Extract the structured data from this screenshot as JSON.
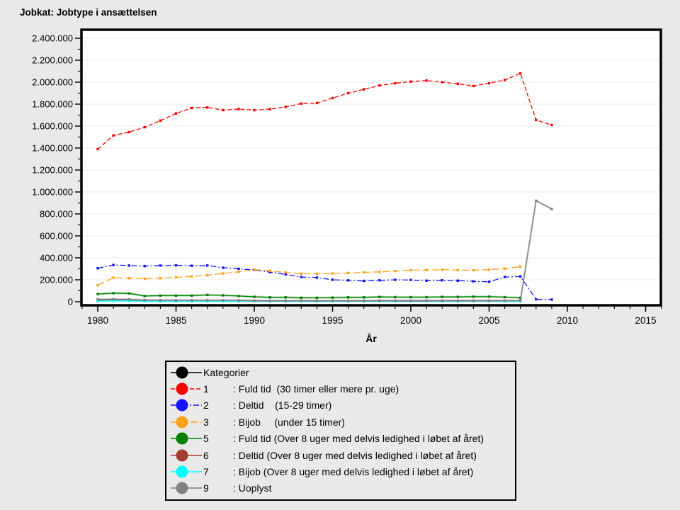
{
  "page": {
    "background": "#e9e9e9"
  },
  "chart_data": {
    "type": "line",
    "title": "Jobkat: Jobtype i ansættelsen",
    "xlabel": "År",
    "ylabel": "",
    "xlim": [
      1979,
      2016
    ],
    "ylim": [
      0,
      2400000
    ],
    "grid": "horizontal-major",
    "x_major_ticks": [
      1980,
      1985,
      1990,
      1995,
      2000,
      2005,
      2010,
      2015
    ],
    "x_tick_labels": [
      "1980",
      "1985",
      "1990",
      "1995",
      "2000",
      "2005",
      "2010",
      "2015"
    ],
    "x_minor_tick_step": 1,
    "y_major_step": 200000,
    "y_minor_step": 100000,
    "y_tick_labels": [
      "0",
      "200.000",
      "400.000",
      "600.000",
      "800.000",
      "1.000.000",
      "1.200.000",
      "1.400.000",
      "1.600.000",
      "1.800.000",
      "2.000.000",
      "2.200.000",
      "2.400.000"
    ],
    "years": [
      1980,
      1981,
      1982,
      1983,
      1984,
      1985,
      1986,
      1987,
      1988,
      1989,
      1990,
      1991,
      1992,
      1993,
      1994,
      1995,
      1996,
      1997,
      1998,
      1999,
      2000,
      2001,
      2002,
      2003,
      2004,
      2005,
      2006,
      2007,
      2008,
      2009
    ],
    "draw_order": [
      0,
      3,
      4,
      5,
      1,
      2,
      6
    ],
    "series": [
      {
        "num": "1",
        "name": "Fuld tid (30 timer eller mere pr. uge)",
        "color": "#ff0000",
        "style": "dash",
        "values": [
          1390000,
          1515000,
          1545000,
          1590000,
          1650000,
          1715000,
          1765000,
          1770000,
          1745000,
          1755000,
          1745000,
          1755000,
          1775000,
          1805000,
          1810000,
          1855000,
          1900000,
          1935000,
          1970000,
          1990000,
          2005000,
          2015000,
          2000000,
          1985000,
          1965000,
          1990000,
          2020000,
          2080000,
          1655000,
          1610000
        ]
      },
      {
        "num": "2",
        "name": "Deltid (15-29 timer)",
        "color": "#1414ff",
        "style": "dashdot",
        "values": [
          305000,
          335000,
          330000,
          325000,
          330000,
          332000,
          328000,
          330000,
          310000,
          300000,
          290000,
          270000,
          250000,
          225000,
          220000,
          200000,
          195000,
          190000,
          195000,
          200000,
          198000,
          192000,
          196000,
          192000,
          186000,
          182000,
          225000,
          230000,
          22000,
          20000
        ]
      },
      {
        "num": "3",
        "name": "Bijob (under 15 timer)",
        "color": "#ffa11c",
        "style": "longdash",
        "values": [
          150000,
          220000,
          215000,
          210000,
          215000,
          222000,
          230000,
          242000,
          258000,
          272000,
          292000,
          282000,
          268000,
          255000,
          255000,
          258000,
          262000,
          268000,
          272000,
          280000,
          288000,
          288000,
          292000,
          288000,
          287000,
          292000,
          302000,
          320000,
          null,
          null
        ]
      },
      {
        "num": "5",
        "name": "Fuld tid (Over 8 uger med delvis ledighed i løbet af året)",
        "color": "#008000",
        "style": "solid",
        "values": [
          70000,
          78000,
          76000,
          52000,
          56000,
          56000,
          56000,
          62000,
          58000,
          52000,
          45000,
          40000,
          40000,
          36000,
          36000,
          38000,
          40000,
          40000,
          44000,
          42000,
          42000,
          42000,
          44000,
          44000,
          46000,
          46000,
          42000,
          36000,
          null,
          null
        ]
      },
      {
        "num": "6",
        "name": "Deltid (Over 8 uger med delvis ledighed i løbet af året)",
        "color": "#a53a2e",
        "style": "solid",
        "values": [
          15000,
          18000,
          16000,
          12000,
          11000,
          11000,
          11000,
          12000,
          12000,
          11000,
          10000,
          9000,
          9000,
          9000,
          9000,
          9000,
          9000,
          9000,
          10000,
          10000,
          10000,
          10000,
          10000,
          10000,
          10000,
          10000,
          10000,
          9000,
          null,
          null
        ]
      },
      {
        "num": "7",
        "name": "Bijob (Over 8 uger med delvis ledighed i løbet af året)",
        "color": "#00ffff",
        "style": "solid",
        "values": [
          6000,
          8000,
          7000,
          5000,
          5000,
          5000,
          5000,
          5000,
          5000,
          5000,
          4000,
          4000,
          4000,
          4000,
          4000,
          4000,
          4000,
          4000,
          4000,
          4000,
          4000,
          4000,
          4000,
          4000,
          5000,
          5000,
          5000,
          4000,
          null,
          null
        ]
      },
      {
        "num": "9",
        "name": "Uoplyst",
        "color": "#808080",
        "style": "solid",
        "values": [
          22000,
          24000,
          22000,
          16000,
          14000,
          13000,
          13000,
          13000,
          13000,
          12000,
          8000,
          8000,
          8000,
          8000,
          8000,
          8000,
          8000,
          8000,
          8000,
          8000,
          8000,
          8000,
          8000,
          8000,
          8000,
          8000,
          9000,
          10000,
          920000,
          845000
        ]
      }
    ]
  },
  "legend": {
    "entries": [
      {
        "label": "Kategorier",
        "desc": "",
        "color": "#000000",
        "style": "solid"
      },
      {
        "label": "1",
        "desc": ": Fuld tid  (30 timer eller mere pr. uge)",
        "color": "#ff0000",
        "style": "dash"
      },
      {
        "label": "2",
        "desc": ": Deltid    (15-29 timer)",
        "color": "#1414ff",
        "style": "dashdot"
      },
      {
        "label": "3",
        "desc": ": Bijob     (under 15 timer)",
        "color": "#ffa11c",
        "style": "longdash"
      },
      {
        "label": "5",
        "desc": ": Fuld tid (Over 8 uger med delvis ledighed i løbet af året)",
        "color": "#008000",
        "style": "solid"
      },
      {
        "label": "6",
        "desc": ": Deltid (Over 8 uger med delvis ledighed i løbet af året)",
        "color": "#a53a2e",
        "style": "solid"
      },
      {
        "label": "7",
        "desc": ": Bijob (Over 8 uger med delvis ledighed i løbet af året)",
        "color": "#00ffff",
        "style": "solid"
      },
      {
        "label": "9",
        "desc": ": Uoplyst",
        "color": "#808080",
        "style": "solid"
      }
    ]
  },
  "colors": {
    "plot_background": "#ffffff",
    "grid": "#ebebeb",
    "frame": "#000000"
  }
}
